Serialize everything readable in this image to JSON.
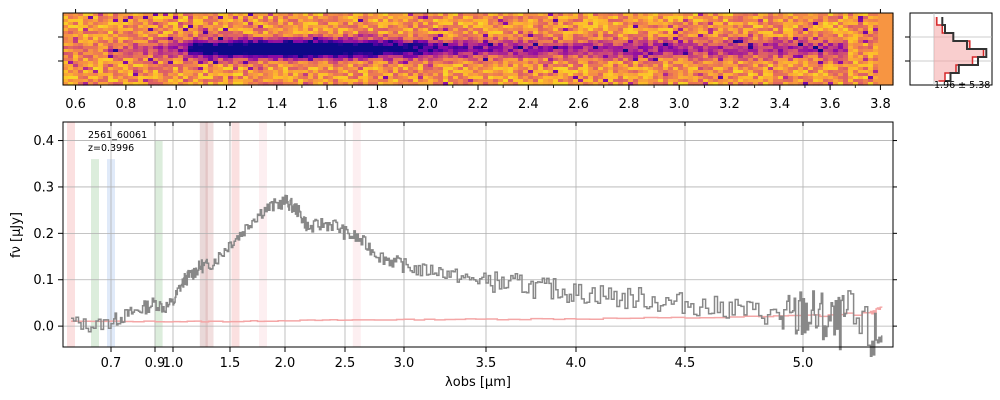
{
  "chart_data": [
    {
      "type": "heatmap",
      "panel": "2d-spectrum",
      "colormap": "plasma",
      "x_ticks": [
        "0.6",
        "0.8",
        "1.0",
        "1.2",
        "1.4",
        "1.6",
        "1.8",
        "2.0",
        "2.2",
        "2.4",
        "2.6",
        "2.8",
        "3.0",
        "3.2",
        "3.4",
        "3.6",
        "3.8"
      ],
      "x_tick_values": [
        0.6,
        0.8,
        1.0,
        1.2,
        1.4,
        1.6,
        1.8,
        2.0,
        2.2,
        2.4,
        2.6,
        2.8,
        3.0,
        3.2,
        3.4,
        3.6,
        3.8
      ],
      "x_range": [
        0.55,
        3.85
      ]
    },
    {
      "type": "line",
      "panel": "profile",
      "label": "1.96 ± 5.38",
      "series": [
        {
          "name": "profile",
          "color": "#333333",
          "x": [
            0.15,
            0.2,
            0.35,
            0.6,
            0.95,
            0.8,
            0.45,
            0.3,
            0.2
          ],
          "y": [
            0,
            1,
            2,
            3,
            4,
            5,
            6,
            7,
            8
          ]
        },
        {
          "name": "model",
          "color": "#d62728",
          "x": [
            0.05,
            0.15,
            0.35,
            0.65,
            0.9,
            0.7,
            0.4,
            0.2,
            0.08
          ],
          "y": [
            0,
            1,
            2,
            3,
            4,
            5,
            6,
            7,
            8
          ]
        }
      ]
    },
    {
      "type": "line",
      "panel": "1d-spectrum",
      "title": "",
      "xlabel": "λobs [μm]",
      "ylabel": "fν [μJy]",
      "annotation": [
        "2561_60061",
        "z=0.3996"
      ],
      "ylim": [
        -0.045,
        0.44
      ],
      "y_ticks": [
        "0.0",
        "0.1",
        "0.2",
        "0.3",
        "0.4"
      ],
      "y_tick_values": [
        0.0,
        0.1,
        0.2,
        0.3,
        0.4
      ],
      "x_ticks": [
        "0.7",
        "0.9",
        "1.0",
        "1.5",
        "2.0",
        "2.5",
        "3.0",
        "3.5",
        "4.0",
        "4.5",
        "5.0"
      ],
      "x_tick_values": [
        0.7,
        0.9,
        1.0,
        1.5,
        2.0,
        2.5,
        3.0,
        3.5,
        4.0,
        4.5,
        5.0
      ],
      "xlim": [
        0.58,
        5.4
      ],
      "series": [
        {
          "name": "flux",
          "color": "#888888",
          "x": [
            0.6,
            0.65,
            0.7,
            0.75,
            0.8,
            0.85,
            0.9,
            0.95,
            1.0,
            1.05,
            1.1,
            1.15,
            1.2,
            1.25,
            1.3,
            1.4,
            1.5,
            1.6,
            1.7,
            1.8,
            1.9,
            2.0,
            2.05,
            2.1,
            2.15,
            2.2,
            2.3,
            2.4,
            2.5,
            2.6,
            2.7,
            2.8,
            2.9,
            3.0,
            3.1,
            3.2,
            3.3,
            3.4,
            3.5,
            3.6,
            3.7,
            3.8,
            3.9,
            4.0,
            4.1,
            4.2,
            4.3,
            4.4,
            4.5,
            4.6,
            4.7,
            4.8,
            4.9,
            4.95,
            5.0,
            5.05,
            5.1,
            5.15,
            5.2,
            5.3,
            5.35
          ],
          "y": [
            0.01,
            0.0,
            0.01,
            0.02,
            0.03,
            0.04,
            0.05,
            0.04,
            0.05,
            0.08,
            0.1,
            0.11,
            0.12,
            0.13,
            0.13,
            0.15,
            0.18,
            0.2,
            0.23,
            0.25,
            0.26,
            0.27,
            0.26,
            0.25,
            0.23,
            0.21,
            0.22,
            0.22,
            0.2,
            0.19,
            0.17,
            0.15,
            0.14,
            0.13,
            0.12,
            0.12,
            0.11,
            0.1,
            0.1,
            0.09,
            0.09,
            0.08,
            0.08,
            0.07,
            0.07,
            0.06,
            0.06,
            0.05,
            0.05,
            0.04,
            0.04,
            0.03,
            0.02,
            0.01,
            0.03,
            0.02,
            0.01,
            0.0,
            0.02,
            -0.03,
            -0.02
          ]
        },
        {
          "name": "error",
          "color": "#f4a6a6",
          "x": [
            0.6,
            1.0,
            1.5,
            2.0,
            2.5,
            3.0,
            3.5,
            4.0,
            4.5,
            5.0,
            5.3,
            5.35
          ],
          "y": [
            0.01,
            0.01,
            0.01,
            0.012,
            0.013,
            0.014,
            0.015,
            0.016,
            0.018,
            0.022,
            0.028,
            0.04
          ]
        }
      ],
      "line_markers": [
        {
          "x": 0.6,
          "color": "#f4a6a6",
          "ymax": 0.44
        },
        {
          "x": 0.66,
          "color": "#9ccc9c",
          "ymax": 0.36
        },
        {
          "x": 0.7,
          "color": "#a6c4ee",
          "ymax": 0.36
        },
        {
          "x": 0.92,
          "color": "#9ccc9c",
          "ymax": 0.4
        },
        {
          "x": 1.27,
          "color": "#c09090",
          "ymax": 0.44
        },
        {
          "x": 1.32,
          "color": "#d9a3a3",
          "ymax": 0.44
        },
        {
          "x": 1.55,
          "color": "#f4a6a6",
          "ymax": 0.44
        },
        {
          "x": 1.8,
          "color": "#f9d0d8",
          "ymax": 0.44
        },
        {
          "x": 2.6,
          "color": "#f9d0d8",
          "ymax": 0.44
        }
      ]
    }
  ]
}
